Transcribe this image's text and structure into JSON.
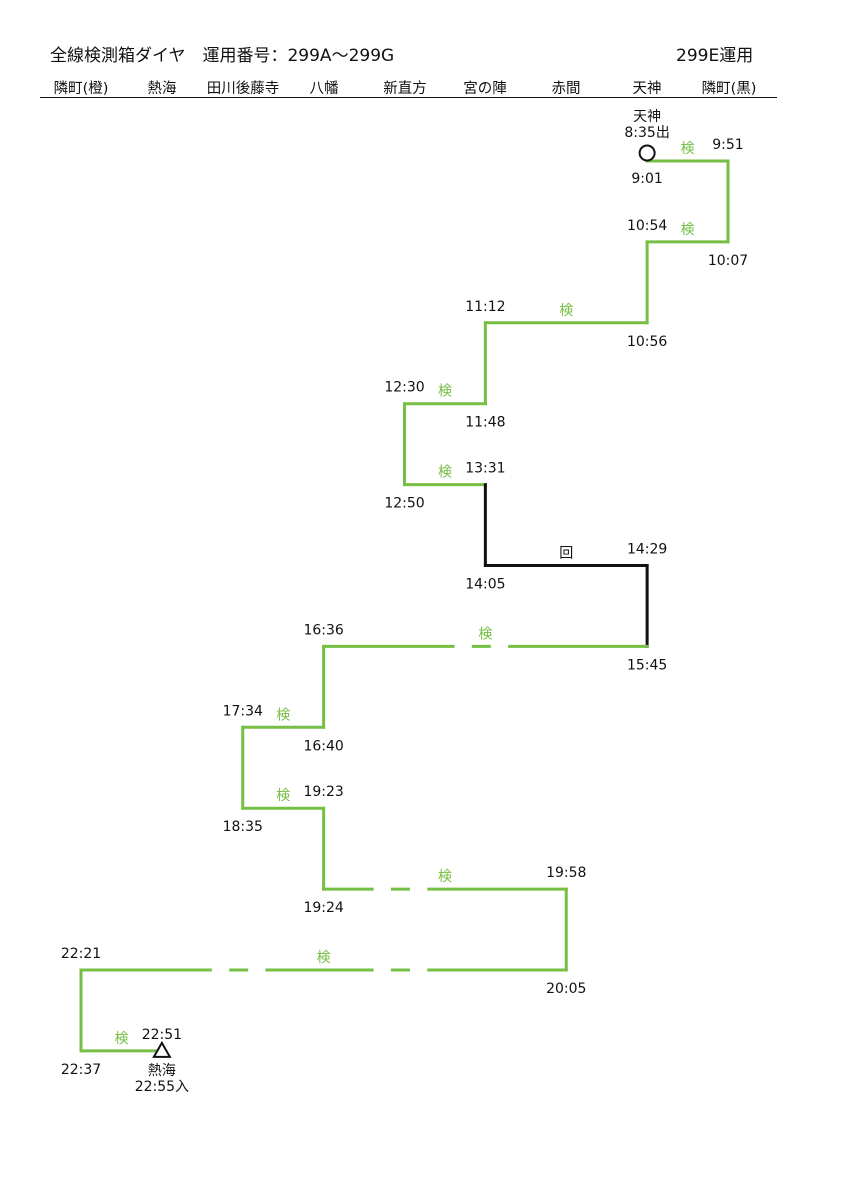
{
  "header": {
    "title": "全線検測箱ダイヤ　運用番号：299A～299G",
    "operation": "299E運用"
  },
  "stations": [
    "隣町(橙)",
    "熱海",
    "田川後藤寺",
    "八幡",
    "新直方",
    "宮の陣",
    "赤間",
    "天神",
    "隣町(黒)"
  ],
  "colors": {
    "inspection": "#77bf44",
    "deadhead": "#111111"
  },
  "start": {
    "station": "天神",
    "time": "8:35出",
    "marker": "circle"
  },
  "end": {
    "station": "熱海",
    "time": "22:55入",
    "marker": "triangle"
  },
  "legs": [
    {
      "from": 7,
      "to": 8,
      "row": 0,
      "dep": "9:01",
      "arr": "9:51",
      "kind": "inspection",
      "label": "検"
    },
    {
      "from": 8,
      "to": 7,
      "row": 1,
      "dep": "10:07",
      "arr": "10:54",
      "kind": "inspection",
      "label": "検"
    },
    {
      "from": 7,
      "to": 5,
      "row": 2,
      "dep": "10:56",
      "arr": "11:12",
      "kind": "inspection",
      "label": "検"
    },
    {
      "from": 5,
      "to": 4,
      "row": 3,
      "dep": "11:48",
      "arr": "12:30",
      "kind": "inspection",
      "label": "検"
    },
    {
      "from": 4,
      "to": 5,
      "row": 4,
      "dep": "12:50",
      "arr": "13:31",
      "kind": "inspection",
      "label": "検"
    },
    {
      "from": 5,
      "to": 7,
      "row": 5,
      "dep": "14:05",
      "arr": "14:29",
      "kind": "deadhead",
      "label": "回"
    },
    {
      "from": 7,
      "to": 3,
      "row": 6,
      "dep": "15:45",
      "arr": "16:36",
      "kind": "inspection",
      "label": "検",
      "broken": [
        4.6,
        5.3
      ]
    },
    {
      "from": 3,
      "to": 2,
      "row": 7,
      "dep": "16:40",
      "arr": "17:34",
      "kind": "inspection",
      "label": "検"
    },
    {
      "from": 2,
      "to": 3,
      "row": 8,
      "dep": "18:35",
      "arr": "19:23",
      "kind": "inspection",
      "label": "検"
    },
    {
      "from": 3,
      "to": 6,
      "row": 9,
      "dep": "19:24",
      "arr": "19:58",
      "kind": "inspection",
      "label": "検",
      "broken": [
        3.6,
        4.3
      ]
    },
    {
      "from": 6,
      "to": 0,
      "row": 10,
      "dep": "20:05",
      "arr": "22:21",
      "kind": "inspection",
      "label": "検",
      "broken": [
        1.6,
        2.3,
        3.6,
        4.3
      ]
    },
    {
      "from": 0,
      "to": 1,
      "row": 11,
      "dep": "22:37",
      "arr": "22:51",
      "kind": "inspection",
      "label": "検"
    }
  ]
}
